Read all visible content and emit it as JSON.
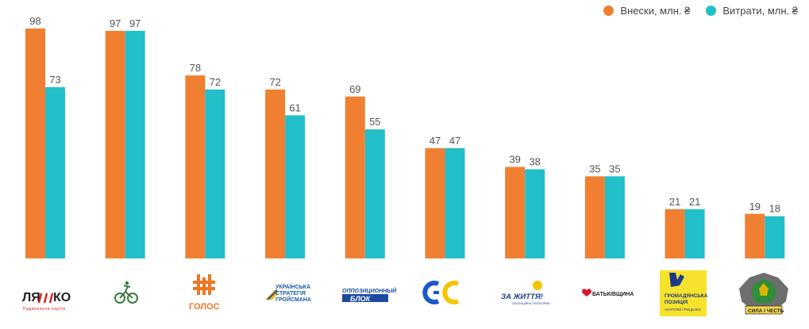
{
  "legend": {
    "contributions_label": "Внески, млн. ₴",
    "expenses_label": "Витрати, млн. ₴"
  },
  "colors": {
    "contributions": "#f07f32",
    "expenses": "#22bfc9"
  },
  "chart_data": {
    "type": "bar",
    "title": "",
    "xlabel": "",
    "ylabel": "",
    "ylim": [
      0,
      100
    ],
    "grid": false,
    "legend_position": "top-right",
    "categories": [
      "ЛЯШКО",
      "Слуга народу",
      "ГОЛОС",
      "Українська стратегія Гройсмана",
      "Опозиційний блок",
      "Європейська Солідарність",
      "За життя",
      "Батьківщина",
      "Громадянська позиція",
      "Сила і честь"
    ],
    "series": [
      {
        "name": "Внески, млн. ₴",
        "values": [
          98,
          97,
          78,
          72,
          69,
          47,
          39,
          35,
          21,
          19
        ]
      },
      {
        "name": "Витрати, млн. ₴",
        "values": [
          73,
          97,
          72,
          61,
          55,
          47,
          38,
          35,
          21,
          18
        ]
      }
    ]
  },
  "logos": {
    "lyashko_main": "ЛЯ",
    "lyashko_end": "КО",
    "lyashko_sub": "Радикальна партія",
    "holos": "ГОЛОС",
    "groysman": [
      "УКРАЇНСЬКА",
      "СТРАТЕГІЯ",
      "ГРОЙСМАНА"
    ],
    "opoblok": [
      "ОППОЗИЦИОННЫЙ",
      "БЛОК"
    ],
    "es": "ЄС",
    "zazhyttia": "ЗА ЖИТТЯ!",
    "zazhyttia_sub": "ОПОЗИЦІЙНА ПЛАТФОРМА",
    "batkivshchyna": "БАТЬКІВЩИНА",
    "hrompoz": [
      "ГРОМАДЯНСЬКА",
      "ПОЗИЦІЯ",
      "АНАТОЛІЙ ГРИЦЕНКО"
    ],
    "syla": "СИЛА І ЧЕСТЬ"
  }
}
